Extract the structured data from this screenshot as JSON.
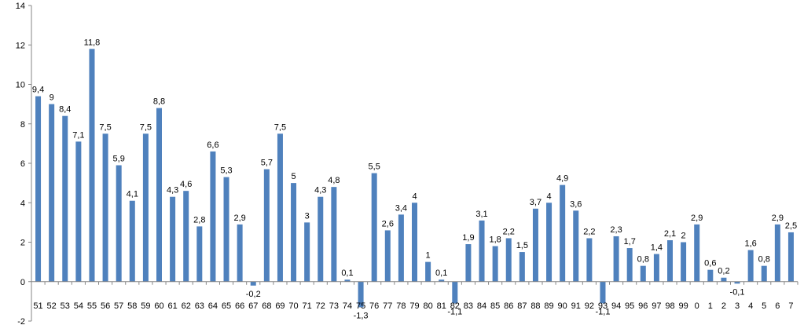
{
  "chart_data": {
    "type": "bar",
    "title": "",
    "xlabel": "",
    "ylabel": "",
    "ylim": [
      -2,
      14
    ],
    "yticks": [
      "-2",
      "0",
      "2",
      "4",
      "6",
      "8",
      "10",
      "12",
      "14"
    ],
    "grid": false,
    "legend": "none",
    "bar_color": "#4F81BD",
    "categories": [
      "51",
      "52",
      "53",
      "54",
      "55",
      "56",
      "57",
      "58",
      "59",
      "60",
      "61",
      "62",
      "63",
      "64",
      "65",
      "66",
      "67",
      "68",
      "69",
      "70",
      "71",
      "72",
      "73",
      "74",
      "75",
      "76",
      "77",
      "78",
      "79",
      "80",
      "81",
      "82",
      "83",
      "84",
      "85",
      "86",
      "87",
      "88",
      "89",
      "90",
      "91",
      "92",
      "93",
      "94",
      "95",
      "96",
      "97",
      "98",
      "99",
      "0",
      "1",
      "2",
      "3",
      "4",
      "5",
      "6",
      "7"
    ],
    "values": [
      9.4,
      9,
      8.4,
      7.1,
      11.8,
      7.5,
      5.9,
      4.1,
      7.5,
      8.8,
      4.3,
      4.6,
      2.8,
      6.6,
      5.3,
      2.9,
      -0.2,
      5.7,
      7.5,
      5,
      3,
      4.3,
      4.8,
      0.1,
      -1.3,
      5.5,
      2.6,
      3.4,
      4,
      1,
      0.1,
      -1.1,
      1.9,
      3.1,
      1.8,
      2.2,
      1.5,
      3.7,
      4,
      4.9,
      3.6,
      2.2,
      -1.1,
      2.3,
      1.7,
      0.8,
      1.4,
      2.1,
      2,
      2.9,
      0.6,
      0.2,
      -0.1,
      1.6,
      0.8,
      2.9,
      2.5
    ],
    "labels": [
      "9,4",
      "9",
      "8,4",
      "7,1",
      "11,8",
      "7,5",
      "5,9",
      "4,1",
      "7,5",
      "8,8",
      "4,3",
      "4,6",
      "2,8",
      "6,6",
      "5,3",
      "2,9",
      "-0,2",
      "5,7",
      "7,5",
      "5",
      "3",
      "4,3",
      "4,8",
      "0,1",
      "-1,3",
      "5,5",
      "2,6",
      "3,4",
      "4",
      "1",
      "0,1",
      "-1,1",
      "1,9",
      "3,1",
      "1,8",
      "2,2",
      "1,5",
      "3,7",
      "4",
      "4,9",
      "3,6",
      "2,2",
      "-1,1",
      "2,3",
      "1,7",
      "0,8",
      "1,4",
      "2,1",
      "2",
      "2,9",
      "0,6",
      "0,2",
      "-0,1",
      "1,6",
      "0,8",
      "2,9",
      "2,5"
    ]
  }
}
